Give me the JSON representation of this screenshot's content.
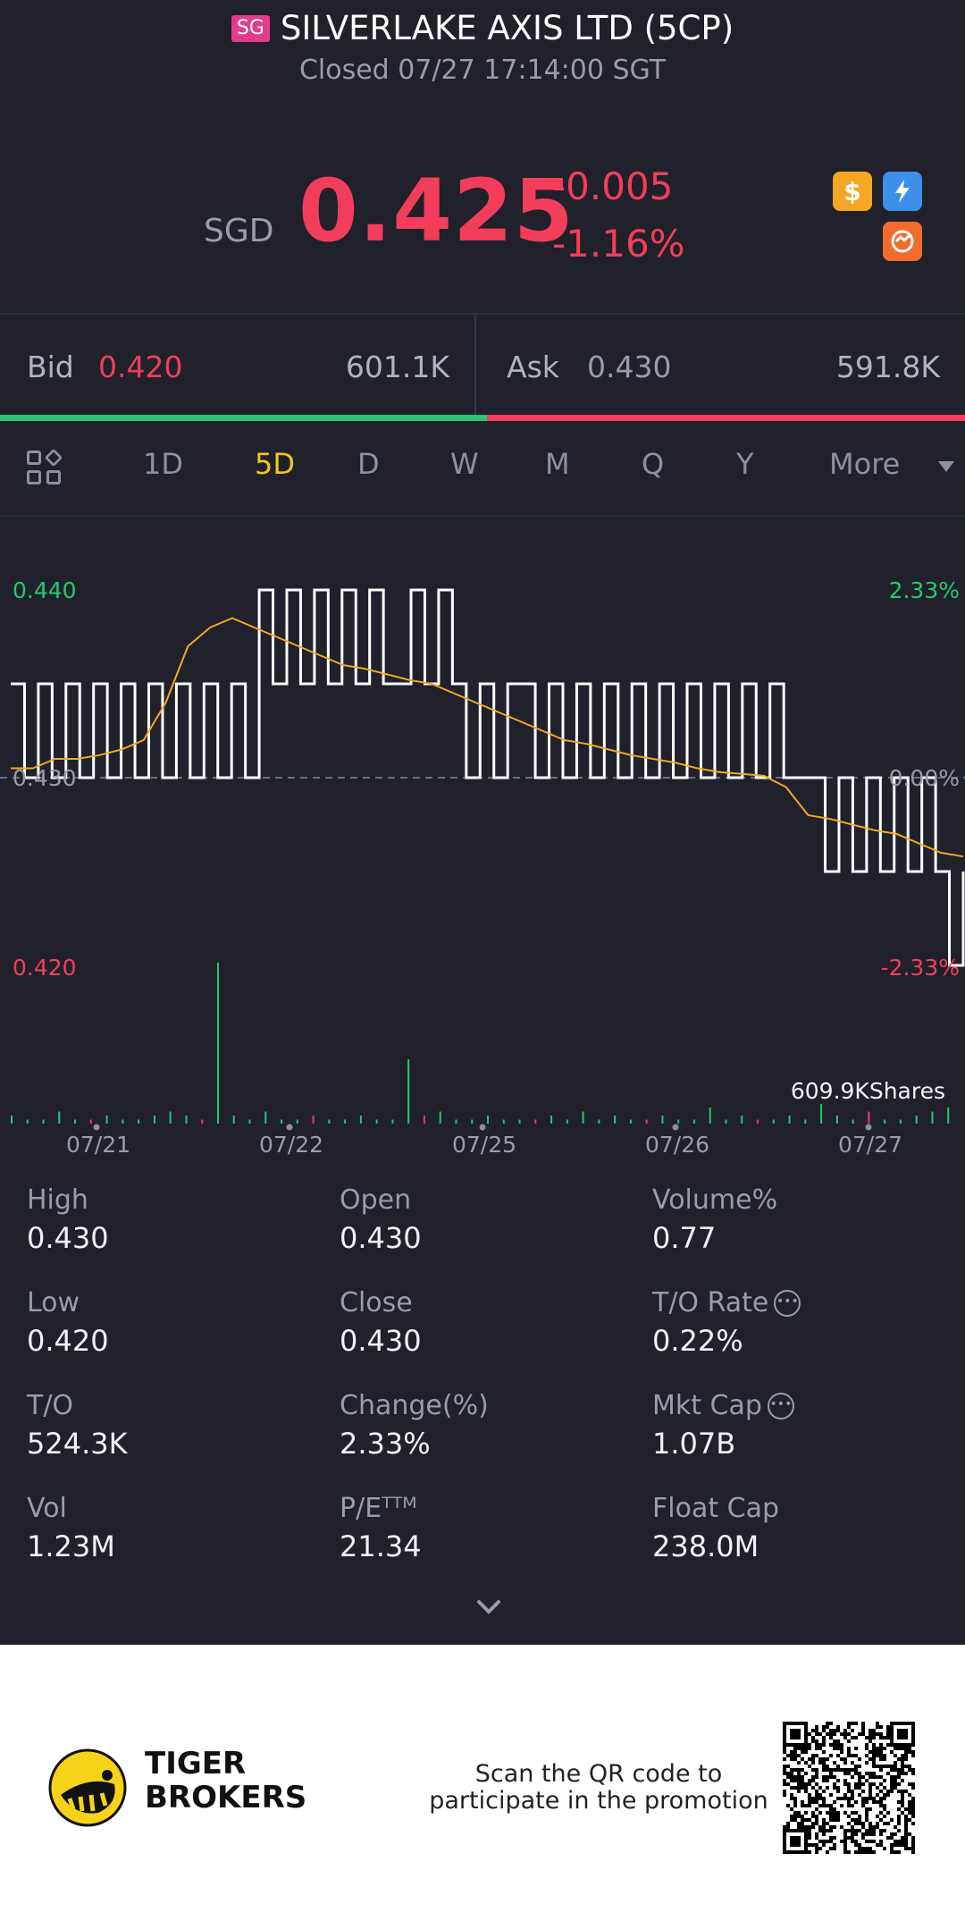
{
  "header": {
    "market_badge": "SG",
    "title": "SILVERLAKE AXIS LTD (5CP)",
    "status": "Closed 07/27 17:14:00 SGT"
  },
  "quote": {
    "currency": "SGD",
    "last_price": "0.425",
    "change": "-0.005",
    "change_pct": "-1.16%",
    "accent_down": "#f23d5b",
    "accent_up": "#28c76f",
    "icons": [
      "dollar-badge-icon",
      "flash-badge-icon",
      "swap-badge-icon"
    ]
  },
  "bid_ask": {
    "bid_label": "Bid",
    "bid_price": "0.420",
    "bid_size": "601.1K",
    "ask_label": "Ask",
    "ask_price": "0.430",
    "ask_size": "591.8K",
    "bid_share": 0.505
  },
  "period_tabs": {
    "items": [
      "1D",
      "5D",
      "D",
      "W",
      "M",
      "Q",
      "Y",
      "More"
    ],
    "active": "5D"
  },
  "chart_data": {
    "type": "line",
    "period": "5D",
    "x_ticks": [
      "07/21",
      "07/22",
      "07/25",
      "07/26",
      "07/27"
    ],
    "ylim": [
      0.42,
      0.44
    ],
    "y_left_ticks": [
      "0.440",
      "0.430",
      "0.420"
    ],
    "y_right_ticks": [
      "2.33%",
      "0.00%",
      "-2.33%"
    ],
    "reference_price": 0.43,
    "volume_label": "609.9KShares",
    "series": [
      {
        "values": [
          0.435,
          0.43,
          0.435,
          0.43,
          0.435,
          0.43,
          0.435,
          0.43,
          0.435,
          0.43,
          0.435,
          0.43,
          0.435,
          0.43,
          0.435,
          0.43,
          0.435,
          0.43,
          0.44,
          0.435,
          0.44,
          0.435,
          0.44,
          0.435,
          0.44,
          0.435,
          0.44,
          0.435,
          0.435,
          0.44,
          0.435,
          0.44,
          0.435,
          0.43,
          0.435,
          0.43,
          0.435,
          0.435,
          0.43,
          0.435,
          0.43,
          0.435,
          0.43,
          0.435,
          0.43,
          0.435,
          0.43,
          0.435,
          0.43,
          0.435,
          0.43,
          0.435,
          0.43,
          0.435,
          0.43,
          0.435,
          0.43,
          0.43,
          0.43,
          0.425,
          0.43,
          0.425,
          0.43,
          0.425,
          0.43,
          0.425,
          0.43,
          0.425,
          0.42,
          0.425
        ]
      },
      {
        "values": [
          0.4305,
          0.4305,
          0.431,
          0.431,
          0.4312,
          0.4315,
          0.432,
          0.434,
          0.437,
          0.438,
          0.4385,
          0.438,
          0.4375,
          0.437,
          0.4365,
          0.436,
          0.4358,
          0.4355,
          0.4352,
          0.435,
          0.4345,
          0.434,
          0.4335,
          0.433,
          0.4325,
          0.432,
          0.4318,
          0.4315,
          0.4312,
          0.431,
          0.4308,
          0.4305,
          0.4303,
          0.4302,
          0.4301,
          0.4295,
          0.428,
          0.4278,
          0.4275,
          0.4272,
          0.427,
          0.4265,
          0.426,
          0.4258
        ]
      }
    ],
    "volume": [
      2,
      1,
      1,
      3,
      1,
      1,
      2,
      1,
      1,
      2,
      3,
      2,
      1,
      40,
      2,
      1,
      3,
      1,
      1,
      2,
      1,
      1,
      2,
      1,
      1,
      16,
      2,
      3,
      1,
      1,
      2,
      1,
      1,
      1,
      2,
      1,
      3,
      1,
      2,
      1,
      1,
      2,
      1,
      1,
      4,
      1,
      2,
      1,
      1,
      2,
      1,
      5,
      2,
      1,
      3,
      1,
      1,
      2,
      3,
      4
    ]
  },
  "stats": {
    "high_label": "High",
    "high": "0.430",
    "open_label": "Open",
    "open": "0.430",
    "volume_pct_label": "Volume%",
    "volume_pct": "0.77",
    "low_label": "Low",
    "low": "0.420",
    "close_label": "Close",
    "close": "0.430",
    "to_rate_label": "T/O Rate",
    "to_rate": "0.22%",
    "to_label": "T/O",
    "to": "524.3K",
    "change_label": "Change(%)",
    "change_pct": "2.33%",
    "mkt_cap_label": "Mkt Cap",
    "mkt_cap": "1.07B",
    "vol_label": "Vol",
    "vol": "1.23M",
    "pe_label": "P/Eᵀᵀᴹ",
    "pe": "21.34",
    "float_cap_label": "Float Cap",
    "float_cap": "238.0M"
  },
  "promo": {
    "brand_line1": "TIGER",
    "brand_line2": "BROKERS",
    "text_line1": "Scan the QR code to",
    "text_line2": "participate in the promotion"
  }
}
